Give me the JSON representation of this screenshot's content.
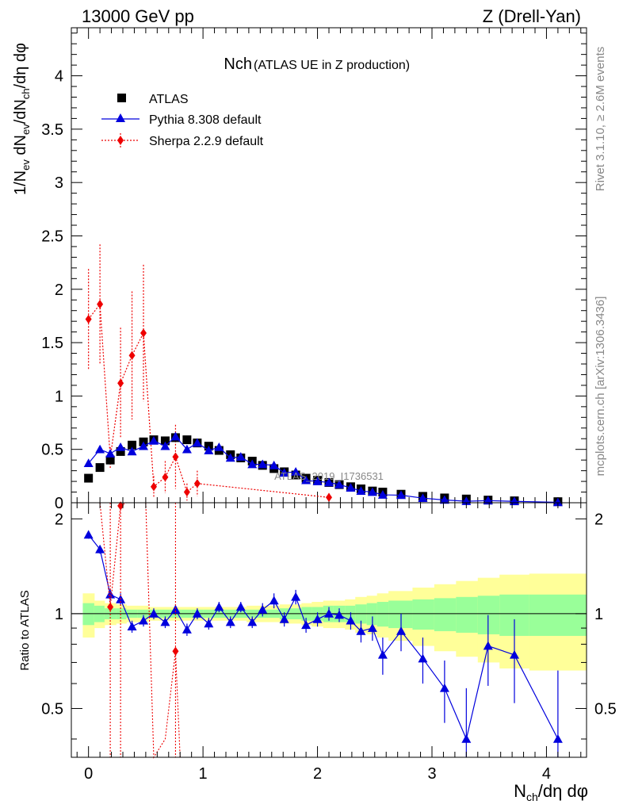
{
  "header": {
    "left": "13000 GeV pp",
    "right": "Z (Drell-Yan)"
  },
  "chart_data": {
    "type": "scatter",
    "title": "Nch",
    "subtitle": "(ATLAS UE in Z production)",
    "xlabel": "N_ch/dη dφ",
    "ylabel": "1/N_ev dN_ev/dN_ch/dη dφ",
    "ratio_ylabel": "Ratio to ATLAS",
    "xlim": [
      -0.15,
      4.35
    ],
    "ylim": [
      0,
      4.45
    ],
    "ratio_ylim": [
      0.35,
      2.25
    ],
    "x_ticks": [
      "0",
      "1",
      "2",
      "3",
      "4"
    ],
    "y_ticks": [
      "0",
      "0.5",
      "1",
      "1.5",
      "2",
      "2.5",
      "3",
      "3.5",
      "4"
    ],
    "ratio_ticks": [
      "0.5",
      "1",
      "2"
    ],
    "watermark": "ATLAS_2019_I1736531",
    "side_text_top": "Rivet 3.1.10, ≥ 2.6M events",
    "side_text_bottom": "mcplots.cern.ch [arXiv:1306.3436]",
    "legend": [
      {
        "name": "ATLAS",
        "marker": "square",
        "color": "#000000"
      },
      {
        "name": "Pythia 8.308 default",
        "marker": "triangle",
        "color": "#0000dd"
      },
      {
        "name": "Sherpa 2.2.9 default",
        "marker": "diamond",
        "color": "#ee0000"
      }
    ],
    "series": [
      {
        "name": "ATLAS",
        "x": [
          0.0,
          0.1,
          0.19,
          0.28,
          0.38,
          0.48,
          0.57,
          0.67,
          0.76,
          0.86,
          0.95,
          1.05,
          1.14,
          1.24,
          1.33,
          1.43,
          1.52,
          1.62,
          1.71,
          1.81,
          1.9,
          2.0,
          2.1,
          2.19,
          2.29,
          2.38,
          2.48,
          2.57,
          2.73,
          2.92,
          3.11,
          3.3,
          3.49,
          3.72,
          4.1
        ],
        "y": [
          0.23,
          0.33,
          0.4,
          0.48,
          0.54,
          0.57,
          0.59,
          0.58,
          0.61,
          0.59,
          0.56,
          0.53,
          0.49,
          0.45,
          0.42,
          0.39,
          0.35,
          0.32,
          0.29,
          0.26,
          0.23,
          0.21,
          0.19,
          0.17,
          0.15,
          0.13,
          0.11,
          0.1,
          0.08,
          0.06,
          0.045,
          0.035,
          0.025,
          0.018,
          0.01
        ]
      },
      {
        "name": "Pythia 8.308 default",
        "x": [
          0.0,
          0.1,
          0.19,
          0.28,
          0.38,
          0.48,
          0.57,
          0.67,
          0.76,
          0.86,
          0.95,
          1.05,
          1.14,
          1.24,
          1.33,
          1.43,
          1.52,
          1.62,
          1.71,
          1.81,
          1.9,
          2.0,
          2.1,
          2.19,
          2.29,
          2.38,
          2.48,
          2.57,
          2.73,
          2.92,
          3.11,
          3.3,
          3.49,
          3.72,
          4.1
        ],
        "y": [
          0.37,
          0.5,
          0.46,
          0.52,
          0.48,
          0.53,
          0.58,
          0.53,
          0.62,
          0.5,
          0.56,
          0.49,
          0.52,
          0.42,
          0.43,
          0.36,
          0.36,
          0.35,
          0.28,
          0.29,
          0.21,
          0.2,
          0.19,
          0.17,
          0.14,
          0.11,
          0.1,
          0.074,
          0.071,
          0.043,
          0.026,
          0.014,
          0.02,
          0.013,
          0.004
        ],
        "ratio": [
          1.78,
          1.6,
          1.15,
          1.11,
          0.91,
          0.95,
          1.0,
          0.94,
          1.03,
          0.89,
          1.0,
          0.93,
          1.05,
          0.94,
          1.05,
          0.94,
          1.03,
          1.1,
          0.96,
          1.13,
          0.92,
          0.96,
          1.0,
          0.99,
          0.95,
          0.88,
          0.9,
          0.74,
          0.88,
          0.72,
          0.58,
          0.4,
          0.79,
          0.74,
          0.4
        ],
        "ratio_err": [
          0.05,
          0.05,
          0.05,
          0.05,
          0.04,
          0.04,
          0.04,
          0.04,
          0.04,
          0.04,
          0.04,
          0.04,
          0.04,
          0.04,
          0.04,
          0.04,
          0.05,
          0.06,
          0.05,
          0.06,
          0.05,
          0.05,
          0.05,
          0.05,
          0.06,
          0.07,
          0.08,
          0.1,
          0.12,
          0.12,
          0.13,
          0.18,
          0.2,
          0.22,
          0.26
        ]
      },
      {
        "name": "Sherpa 2.2.9 default",
        "x": [
          0.0,
          0.1,
          0.19,
          0.28,
          0.38,
          0.48,
          0.57,
          0.67,
          0.76,
          0.86,
          0.95,
          2.1
        ],
        "y": [
          1.72,
          1.86,
          0.42,
          1.12,
          1.38,
          1.59,
          0.15,
          0.24,
          0.43,
          0.1,
          0.18,
          0.05
        ],
        "err": [
          0.47,
          0.56,
          0.1,
          0.52,
          0.6,
          0.64,
          0.1,
          0.15,
          0.3,
          0.08,
          0.12,
          0.04
        ],
        "ratio": [
          null,
          null,
          1.05,
          2.2,
          null,
          null,
          null,
          null,
          0.76,
          null,
          null,
          null
        ]
      }
    ],
    "ratio_bands": {
      "x_edges": [
        -0.05,
        0.05,
        0.14,
        0.24,
        0.33,
        0.43,
        0.52,
        0.62,
        0.71,
        0.81,
        0.9,
        1.0,
        1.1,
        1.19,
        1.29,
        1.38,
        1.48,
        1.57,
        1.67,
        1.76,
        1.86,
        1.95,
        2.05,
        2.14,
        2.24,
        2.33,
        2.43,
        2.52,
        2.62,
        2.83,
        3.02,
        3.21,
        3.4,
        3.59,
        3.85,
        4.35
      ],
      "inner": [
        0.08,
        0.06,
        0.04,
        0.04,
        0.03,
        0.03,
        0.03,
        0.03,
        0.03,
        0.03,
        0.03,
        0.03,
        0.03,
        0.03,
        0.03,
        0.03,
        0.03,
        0.03,
        0.04,
        0.04,
        0.05,
        0.05,
        0.06,
        0.06,
        0.06,
        0.07,
        0.08,
        0.09,
        0.1,
        0.11,
        0.12,
        0.13,
        0.14,
        0.15,
        0.15
      ],
      "outer": [
        0.16,
        0.1,
        0.08,
        0.07,
        0.06,
        0.06,
        0.05,
        0.05,
        0.05,
        0.05,
        0.05,
        0.05,
        0.05,
        0.05,
        0.05,
        0.06,
        0.06,
        0.06,
        0.07,
        0.07,
        0.08,
        0.09,
        0.1,
        0.1,
        0.11,
        0.13,
        0.14,
        0.16,
        0.18,
        0.21,
        0.24,
        0.27,
        0.3,
        0.33,
        0.34
      ]
    },
    "colors": {
      "band_outer": "#ffff99",
      "band_inner": "#99ff99"
    }
  }
}
